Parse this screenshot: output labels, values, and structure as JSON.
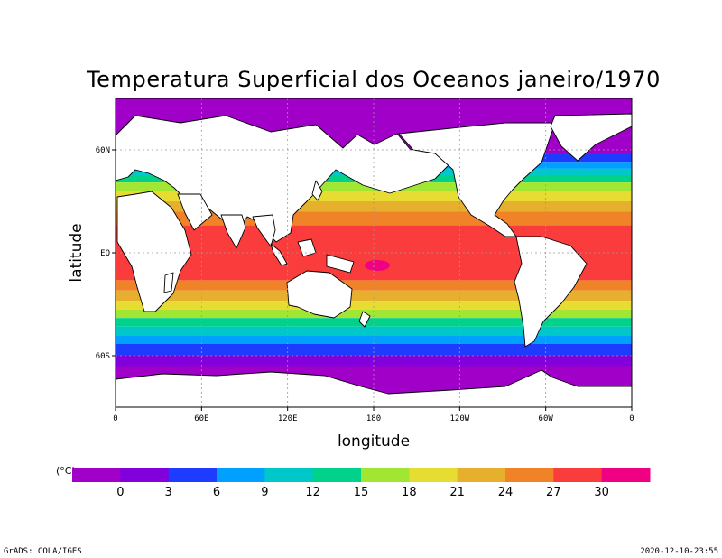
{
  "map": {
    "title": "Temperatura Superficial dos Oceanos janeiro/1970",
    "xlabel": "longitude",
    "ylabel": "latitude",
    "x_ticks": [
      "0",
      "60E",
      "120E",
      "180",
      "120W",
      "60W",
      "0"
    ],
    "y_ticks": [
      "60N",
      "EQ",
      "60S"
    ],
    "variable": "sea surface temperature",
    "units": "(°C)",
    "grid": true,
    "land_color": "#ffffff"
  },
  "legend": {
    "unit": "(°C)",
    "labels": [
      "0",
      "3",
      "6",
      "9",
      "12",
      "15",
      "18",
      "21",
      "24",
      "27",
      "30"
    ],
    "colors": [
      "#a000c8",
      "#8200dc",
      "#1e3cff",
      "#00a0ff",
      "#00c8c8",
      "#00d28c",
      "#a0e632",
      "#e6dc32",
      "#e6af2d",
      "#f08228",
      "#fa3c3c",
      "#f00082"
    ]
  },
  "footer": {
    "left": "GrADS: COLA/IGES",
    "right": "2020-12-10-23:55"
  }
}
